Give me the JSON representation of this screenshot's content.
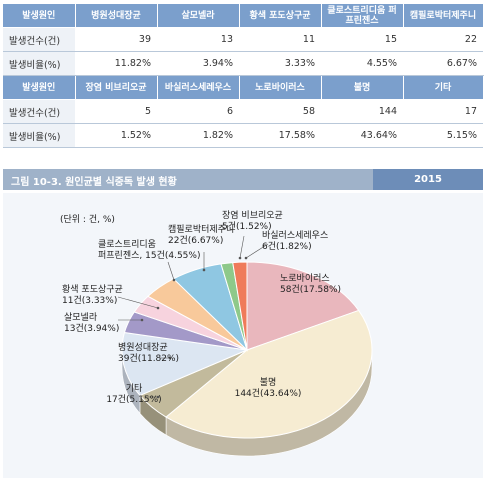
{
  "table": {
    "row_header_label": "발생원인",
    "count_label": "발생건수(건)",
    "ratio_label": "발생비율(%)",
    "group1": [
      {
        "name": "병원성대장균",
        "count": "39",
        "ratio": "11.82%"
      },
      {
        "name": "살모넬라",
        "count": "13",
        "ratio": "3.94%"
      },
      {
        "name": "황색 포도상구균",
        "count": "11",
        "ratio": "3.33%"
      },
      {
        "name": "클로스트리디움 퍼프린젠스",
        "count": "15",
        "ratio": "4.55%"
      },
      {
        "name": "캠필로박터제주니",
        "count": "22",
        "ratio": "6.67%"
      }
    ],
    "group2": [
      {
        "name": "장염 비브리오균",
        "count": "5",
        "ratio": "1.52%"
      },
      {
        "name": "바실러스세레우스",
        "count": "6",
        "ratio": "1.82%"
      },
      {
        "name": "노로바이러스",
        "count": "58",
        "ratio": "17.58%"
      },
      {
        "name": "불명",
        "count": "144",
        "ratio": "43.64%"
      },
      {
        "name": "기타",
        "count": "17",
        "ratio": "5.15%"
      }
    ]
  },
  "figure": {
    "title": "그림 10-3. 원인균별 식중독 발생 현황",
    "year": "2015",
    "unit": "(단위 : 건, %)"
  },
  "chart_data": {
    "type": "pie",
    "start_angle_deg": -90,
    "slices": [
      {
        "name": "노로바이러스",
        "value": 58,
        "percent": 17.58,
        "label": "58건(17.58%)",
        "color": "#e9b7bd"
      },
      {
        "name": "불명",
        "value": 144,
        "percent": 43.64,
        "label": "144건(43.64%)",
        "color": "#f6ecd2"
      },
      {
        "name": "기타",
        "value": 17,
        "percent": 5.15,
        "label": "17건(5.15%)",
        "color": "#c2ba9c"
      },
      {
        "name": "병원성대장균",
        "value": 39,
        "percent": 11.82,
        "label": "39건(11.82%)",
        "color": "#dce6f2"
      },
      {
        "name": "살모넬라",
        "value": 13,
        "percent": 3.94,
        "label": "13건(3.94%)",
        "color": "#a399c8"
      },
      {
        "name": "황색 포도상구균",
        "value": 11,
        "percent": 3.33,
        "label": "11건(3.33%)",
        "color": "#f7d3de"
      },
      {
        "name": "클로스트리디움 퍼프린젠스",
        "value": 15,
        "percent": 4.55,
        "label": "15건(4.55%)",
        "color": "#f8c99b"
      },
      {
        "name": "캠필로박터제주니",
        "value": 22,
        "percent": 6.67,
        "label": "22건(6.67%)",
        "color": "#8fc7e2"
      },
      {
        "name": "장염 비브리오균",
        "value": 5,
        "percent": 1.52,
        "label": "5건(1.52%)",
        "color": "#8ec98a"
      },
      {
        "name": "바실러스세레우스",
        "value": 6,
        "percent": 1.82,
        "label": "6건(1.82%)",
        "color": "#ef7b5a"
      }
    ]
  }
}
